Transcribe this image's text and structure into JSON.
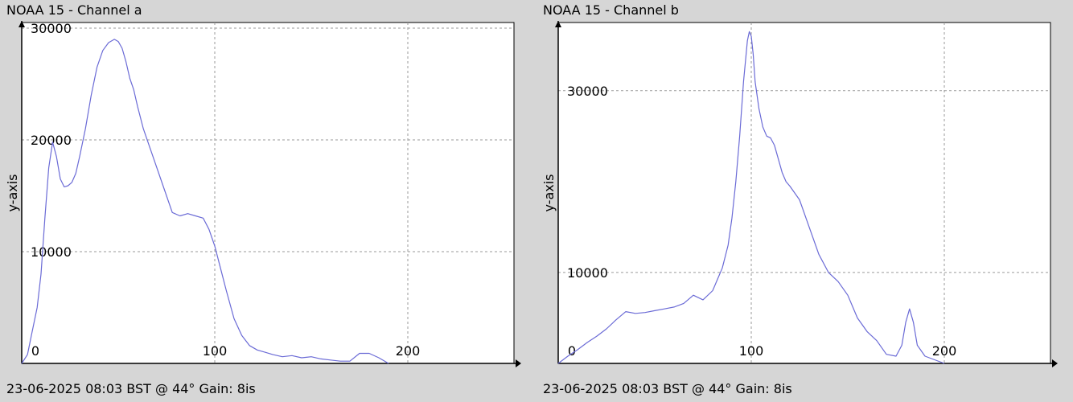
{
  "colors": {
    "background": "#d6d6d6",
    "plot_bg": "#ffffff",
    "series": "#6b6bd6",
    "grid": "#9a9a9a"
  },
  "panels": [
    {
      "title": "NOAA 15 - Channel a",
      "footer": "23-06-2025 08:03 BST @ 44° Gain: 8is"
    },
    {
      "title": "NOAA 15 - Channel b",
      "footer": "23-06-2025 08:03 BST @ 44° Gain: 8is"
    }
  ],
  "chart_data": [
    {
      "type": "line",
      "title": "NOAA 15 - Channel a",
      "xlabel": "",
      "ylabel": "y-axis",
      "xlim": [
        0,
        255
      ],
      "ylim": [
        0,
        30500
      ],
      "x_ticks": [
        0,
        100,
        200
      ],
      "y_ticks": [
        10000,
        20000,
        30000
      ],
      "grid": true,
      "series": [
        {
          "x": [
            0,
            3,
            5,
            8,
            10,
            12,
            14,
            16,
            18,
            20,
            22,
            24,
            26,
            28,
            30,
            33,
            36,
            39,
            42,
            45,
            48,
            50,
            52,
            54,
            56,
            58,
            60,
            63,
            66,
            70,
            74,
            78,
            82,
            86,
            90,
            94,
            97,
            100,
            103,
            106,
            110,
            114,
            118,
            122,
            126,
            130,
            135,
            140,
            145,
            150,
            155,
            160,
            165,
            170,
            175,
            180,
            185,
            190
          ],
          "y": [
            0,
            800,
            2500,
            5000,
            8000,
            13000,
            17500,
            19800,
            18500,
            16500,
            15800,
            15900,
            16200,
            17000,
            18500,
            21000,
            24000,
            26500,
            28000,
            28700,
            29000,
            28800,
            28200,
            27000,
            25500,
            24500,
            23000,
            21000,
            19500,
            17500,
            15500,
            13500,
            13200,
            13400,
            13200,
            13000,
            12000,
            10500,
            8500,
            6500,
            4000,
            2500,
            1600,
            1200,
            1000,
            800,
            600,
            700,
            500,
            600,
            400,
            300,
            200,
            200,
            900,
            900,
            500,
            0
          ]
        }
      ]
    },
    {
      "type": "line",
      "title": "NOAA 15 - Channel b",
      "xlabel": "",
      "ylabel": "y-axis",
      "xlim": [
        0,
        255
      ],
      "ylim": [
        0,
        37500
      ],
      "x_ticks": [
        0,
        100,
        200
      ],
      "y_ticks": [
        10000,
        30000
      ],
      "grid": true,
      "series": [
        {
          "x": [
            0,
            5,
            10,
            15,
            20,
            25,
            30,
            35,
            40,
            45,
            50,
            55,
            60,
            65,
            70,
            75,
            80,
            85,
            88,
            90,
            92,
            94,
            96,
            98,
            99,
            100,
            101,
            102,
            104,
            106,
            108,
            110,
            112,
            114,
            116,
            118,
            120,
            125,
            130,
            135,
            140,
            145,
            150,
            155,
            160,
            165,
            170,
            175,
            178,
            180,
            182,
            184,
            186,
            190,
            200
          ],
          "y": [
            0,
            800,
            1500,
            2300,
            3000,
            3800,
            4800,
            5700,
            5500,
            5600,
            5800,
            6000,
            6200,
            6600,
            7500,
            7000,
            8000,
            10500,
            13000,
            16000,
            20000,
            25000,
            31000,
            35500,
            36500,
            36000,
            34000,
            31000,
            28000,
            26000,
            25000,
            24800,
            24000,
            22500,
            21000,
            20000,
            19500,
            18000,
            15000,
            12000,
            10000,
            9000,
            7500,
            5000,
            3500,
            2500,
            1000,
            800,
            2000,
            4500,
            6000,
            4500,
            2000,
            800,
            0
          ]
        }
      ]
    }
  ]
}
